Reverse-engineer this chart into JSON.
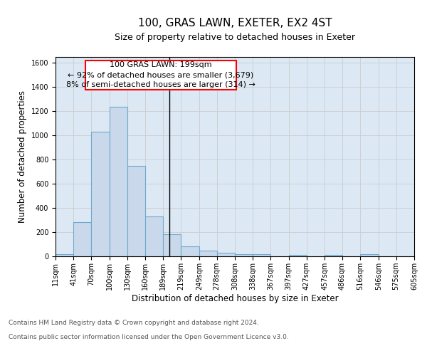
{
  "title1": "100, GRAS LAWN, EXETER, EX2 4ST",
  "title2": "Size of property relative to detached houses in Exeter",
  "xlabel": "Distribution of detached houses by size in Exeter",
  "ylabel": "Number of detached properties",
  "bin_edges": [
    11,
    41,
    70,
    100,
    130,
    160,
    189,
    219,
    249,
    278,
    308,
    338,
    367,
    397,
    427,
    457,
    486,
    516,
    546,
    575,
    605
  ],
  "bar_heights": [
    15,
    280,
    1030,
    1240,
    750,
    330,
    180,
    85,
    45,
    30,
    15,
    15,
    0,
    10,
    0,
    10,
    0,
    15,
    0,
    0
  ],
  "bar_color": "#c9d9eb",
  "bar_edge_color": "#6fa8cc",
  "bar_edge_width": 0.8,
  "property_line_x": 199,
  "ylim": [
    0,
    1650
  ],
  "yticks": [
    0,
    200,
    400,
    600,
    800,
    1000,
    1200,
    1400,
    1600
  ],
  "annotation_box_text": "100 GRAS LAWN: 199sqm\n← 92% of detached houses are smaller (3,679)\n8% of semi-detached houses are larger (314) →",
  "grid_color": "#cccccc",
  "background_color": "#dce9f5",
  "footer_text1": "Contains HM Land Registry data © Crown copyright and database right 2024.",
  "footer_text2": "Contains public sector information licensed under the Open Government Licence v3.0.",
  "title1_fontsize": 11,
  "title2_fontsize": 9,
  "xlabel_fontsize": 8.5,
  "ylabel_fontsize": 8.5,
  "tick_fontsize": 7,
  "annotation_fontsize": 8,
  "footer_fontsize": 6.5
}
